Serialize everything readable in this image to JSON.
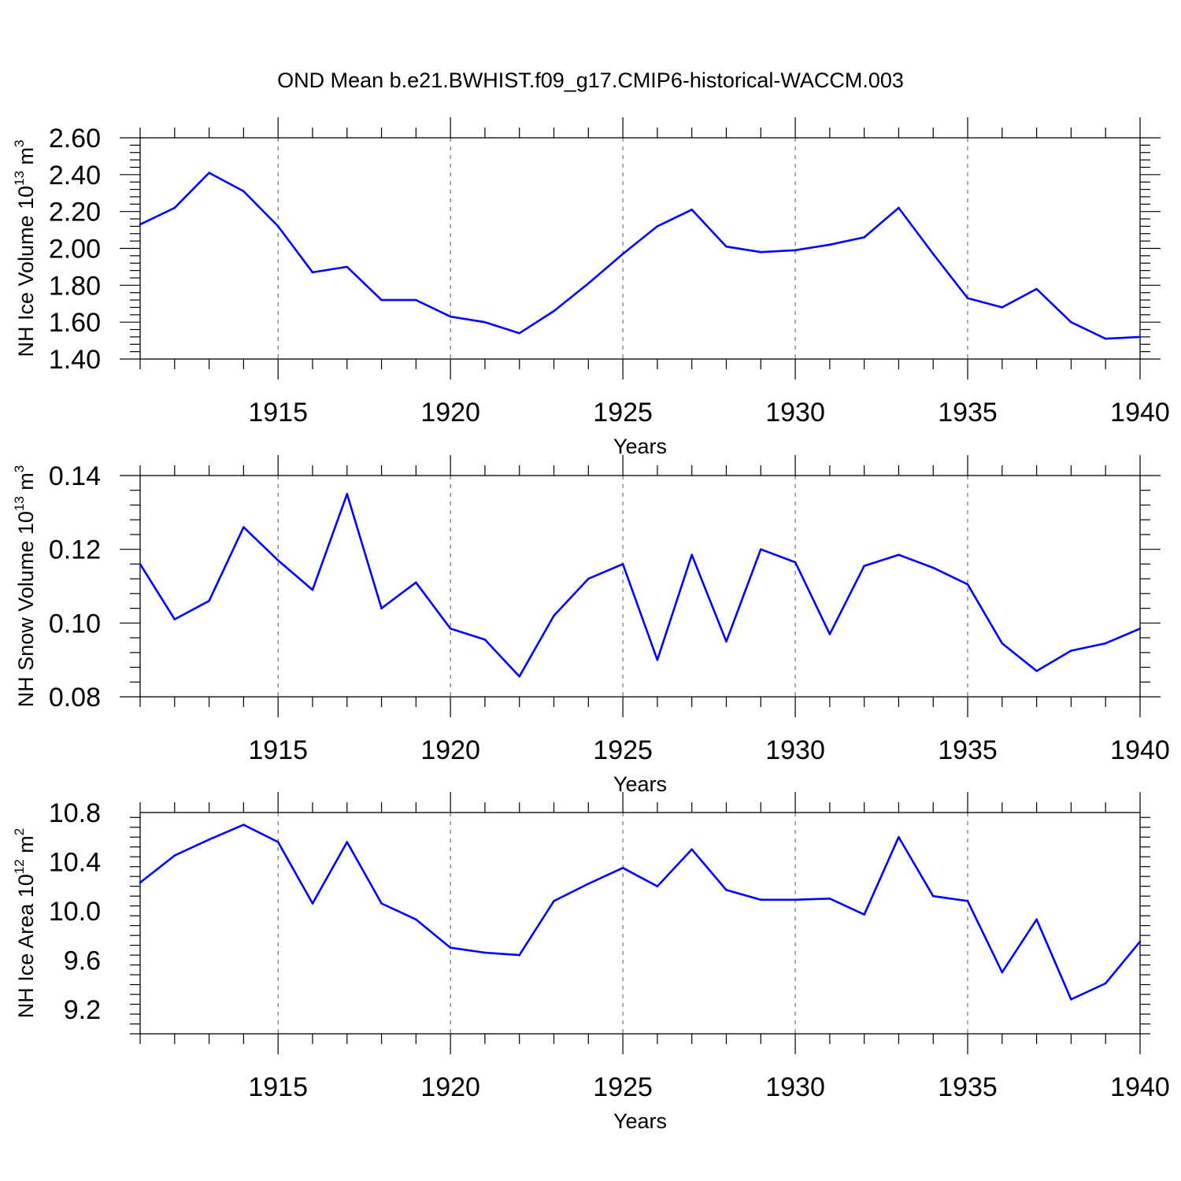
{
  "title": "OND Mean b.e21.BWHIST.f09_g17.CMIP6-historical-WACCM.003",
  "line_color": "#0000ff",
  "chart_data": [
    {
      "type": "line",
      "ylabel": "NH Ice Volume 10",
      "ylabel_sup": "13",
      "ylabel_unit": " m",
      "ylabel_unit_sup": "3",
      "xlabel": "Years",
      "xlim": [
        1911,
        1940
      ],
      "ylim": [
        1.4,
        2.6
      ],
      "yticks": [
        "2.60",
        "2.40",
        "2.20",
        "2.00",
        "1.80",
        "1.60",
        "1.40"
      ],
      "ytick_values": [
        2.6,
        2.4,
        2.2,
        2.0,
        1.8,
        1.6,
        1.4
      ],
      "xticks": [
        "1915",
        "1920",
        "1925",
        "1930",
        "1935",
        "1940"
      ],
      "xtick_values": [
        1915,
        1920,
        1925,
        1930,
        1935,
        1940
      ],
      "x": [
        1911,
        1912,
        1913,
        1914,
        1915,
        1916,
        1917,
        1918,
        1919,
        1920,
        1921,
        1922,
        1923,
        1924,
        1925,
        1926,
        1927,
        1928,
        1929,
        1930,
        1931,
        1932,
        1933,
        1934,
        1935,
        1936,
        1937,
        1938,
        1939,
        1940
      ],
      "values": [
        2.13,
        2.22,
        2.41,
        2.31,
        2.12,
        1.87,
        1.9,
        1.72,
        1.72,
        1.63,
        1.6,
        1.54,
        1.66,
        1.81,
        1.97,
        2.12,
        2.21,
        2.01,
        1.98,
        1.99,
        2.02,
        2.06,
        2.22,
        1.97,
        1.73,
        1.68,
        1.78,
        1.6,
        1.51,
        1.52
      ]
    },
    {
      "type": "line",
      "ylabel": "NH Snow Volume 10",
      "ylabel_sup": "13",
      "ylabel_unit": " m",
      "ylabel_unit_sup": "3",
      "xlabel": "Years",
      "xlim": [
        1911,
        1940
      ],
      "ylim": [
        0.08,
        0.14
      ],
      "yticks": [
        "0.14",
        "0.12",
        "0.10",
        "0.08"
      ],
      "ytick_values": [
        0.14,
        0.12,
        0.1,
        0.08
      ],
      "xticks": [
        "1915",
        "1920",
        "1925",
        "1930",
        "1935",
        "1940"
      ],
      "xtick_values": [
        1915,
        1920,
        1925,
        1930,
        1935,
        1940
      ],
      "x": [
        1911,
        1912,
        1913,
        1914,
        1915,
        1916,
        1917,
        1918,
        1919,
        1920,
        1921,
        1922,
        1923,
        1924,
        1925,
        1926,
        1927,
        1928,
        1929,
        1930,
        1931,
        1932,
        1933,
        1934,
        1935,
        1936,
        1937,
        1938,
        1939,
        1940
      ],
      "values": [
        0.116,
        0.101,
        0.106,
        0.126,
        0.117,
        0.109,
        0.135,
        0.104,
        0.111,
        0.0985,
        0.0955,
        0.0855,
        0.102,
        0.112,
        0.116,
        0.09,
        0.1185,
        0.095,
        0.12,
        0.1165,
        0.097,
        0.1155,
        0.1185,
        0.115,
        0.1105,
        0.0945,
        0.087,
        0.0925,
        0.0945,
        0.0985
      ]
    },
    {
      "type": "line",
      "ylabel": "NH Ice Area 10",
      "ylabel_sup": "12",
      "ylabel_unit": " m",
      "ylabel_unit_sup": "2",
      "xlabel": "Years",
      "xlim": [
        1911,
        1940
      ],
      "ylim": [
        9.0,
        10.8
      ],
      "yticks": [
        "10.8",
        "10.4",
        "10.0",
        "9.6",
        "9.2"
      ],
      "ytick_values": [
        10.8,
        10.4,
        10.0,
        9.6,
        9.2
      ],
      "xticks": [
        "1915",
        "1920",
        "1925",
        "1930",
        "1935",
        "1940"
      ],
      "xtick_values": [
        1915,
        1920,
        1925,
        1930,
        1935,
        1940
      ],
      "x": [
        1911,
        1912,
        1913,
        1914,
        1915,
        1916,
        1917,
        1918,
        1919,
        1920,
        1921,
        1922,
        1923,
        1924,
        1925,
        1926,
        1927,
        1928,
        1929,
        1930,
        1931,
        1932,
        1933,
        1934,
        1935,
        1936,
        1937,
        1938,
        1939,
        1940
      ],
      "values": [
        10.23,
        10.45,
        10.58,
        10.7,
        10.56,
        10.06,
        10.56,
        10.06,
        9.93,
        9.7,
        9.66,
        9.64,
        10.08,
        10.22,
        10.35,
        10.2,
        10.5,
        10.17,
        10.09,
        10.09,
        10.1,
        9.97,
        10.6,
        10.12,
        10.08,
        9.5,
        9.93,
        9.28,
        9.41,
        9.75
      ]
    }
  ]
}
